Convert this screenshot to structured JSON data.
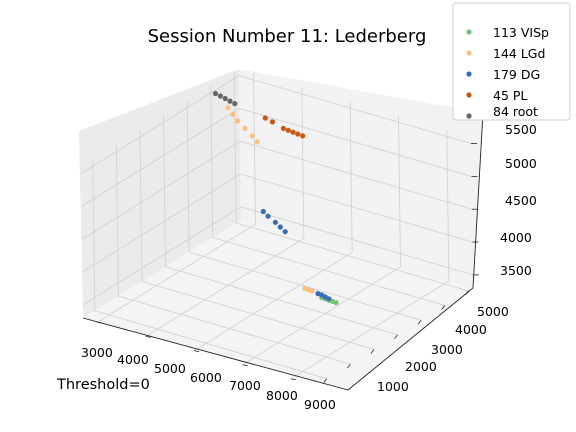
{
  "chart_data": {
    "type": "scatter",
    "title": "Session Number 11: Lederberg",
    "annotation": "Threshold=0",
    "x_ticks": [
      "3000",
      "4000",
      "5000",
      "6000",
      "7000",
      "8000",
      "9000"
    ],
    "y_ticks": [
      "1000",
      "2000",
      "3000",
      "4000",
      "5000"
    ],
    "z_ticks": [
      "3500",
      "4000",
      "4500",
      "5000",
      "5500"
    ],
    "xlim": [
      2800,
      9500
    ],
    "ylim": [
      500,
      5300
    ],
    "zlim": [
      3300,
      5600
    ],
    "grid": true,
    "legend_position": "top-right",
    "series": [
      {
        "name": "113 VISp",
        "color": "#74c476",
        "points": [
          [
            7350,
            1100,
            3960
          ],
          [
            7400,
            1150,
            3980
          ],
          [
            7450,
            1200,
            4000
          ],
          [
            7500,
            1250,
            4020
          ],
          [
            7550,
            1300,
            4040
          ]
        ]
      },
      {
        "name": "144 LGd",
        "color": "#fdbf80",
        "points": [
          [
            7650,
            1450,
            4130
          ],
          [
            7700,
            1500,
            4150
          ],
          [
            7750,
            1550,
            4170
          ],
          [
            4200,
            4250,
            5030
          ],
          [
            4200,
            4350,
            5100
          ],
          [
            4200,
            4500,
            5180
          ],
          [
            4200,
            4650,
            5260
          ],
          [
            4200,
            4750,
            5340
          ],
          [
            4200,
            4850,
            5420
          ]
        ]
      },
      {
        "name": "179 DG",
        "color": "#3a6cb4",
        "points": [
          [
            7450,
            1200,
            4020
          ],
          [
            7500,
            1250,
            4050
          ],
          [
            7550,
            1300,
            4080
          ],
          [
            7600,
            1350,
            4100
          ],
          [
            5200,
            3200,
            4110
          ],
          [
            5200,
            3300,
            4160
          ],
          [
            5200,
            3400,
            4210
          ],
          [
            5200,
            3550,
            4270
          ],
          [
            5200,
            3650,
            4320
          ]
        ]
      },
      {
        "name": "45 PL",
        "color": "#c85711",
        "points": [
          [
            3400,
            3700,
            5060
          ],
          [
            3500,
            3750,
            5100
          ],
          [
            3600,
            3800,
            5140
          ],
          [
            3700,
            3850,
            5180
          ],
          [
            3800,
            3900,
            5220
          ],
          [
            3950,
            4050,
            5320
          ],
          [
            4050,
            4150,
            5380
          ]
        ]
      },
      {
        "name": "84 root",
        "color": "#666666",
        "points": [
          [
            3400,
            5100,
            5250
          ],
          [
            3500,
            5150,
            5300
          ],
          [
            3600,
            5200,
            5350
          ],
          [
            3700,
            5250,
            5400
          ],
          [
            3800,
            5300,
            5450
          ]
        ]
      }
    ]
  }
}
